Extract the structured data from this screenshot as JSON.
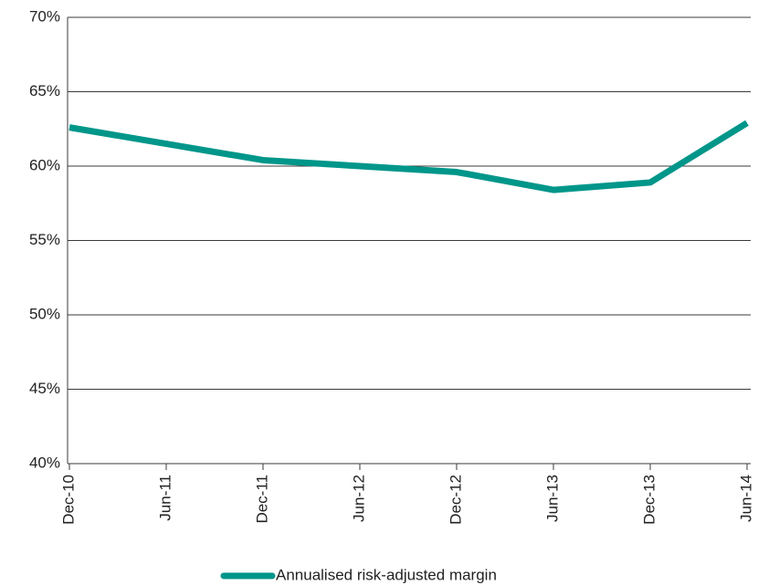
{
  "chart_data": {
    "type": "line",
    "categories": [
      "Dec-10",
      "Jun-11",
      "Dec-11",
      "Jun-12",
      "Dec-12",
      "Jun-13",
      "Dec-13",
      "Jun-14"
    ],
    "series": [
      {
        "name": "Annualised risk-adjusted margin",
        "color": "#00968a",
        "values": [
          62.6,
          61.5,
          60.4,
          60.0,
          59.6,
          58.4,
          58.9,
          62.9
        ]
      }
    ],
    "ylim": [
      40,
      70
    ],
    "yticks": [
      {
        "value": 40,
        "label": "40%"
      },
      {
        "value": 45,
        "label": "45%"
      },
      {
        "value": 50,
        "label": "50%"
      },
      {
        "value": 55,
        "label": "55%"
      },
      {
        "value": 60,
        "label": "60%"
      },
      {
        "value": 65,
        "label": "65%"
      },
      {
        "value": 70,
        "label": "70%"
      }
    ],
    "grid": true,
    "legend": "bottom"
  }
}
